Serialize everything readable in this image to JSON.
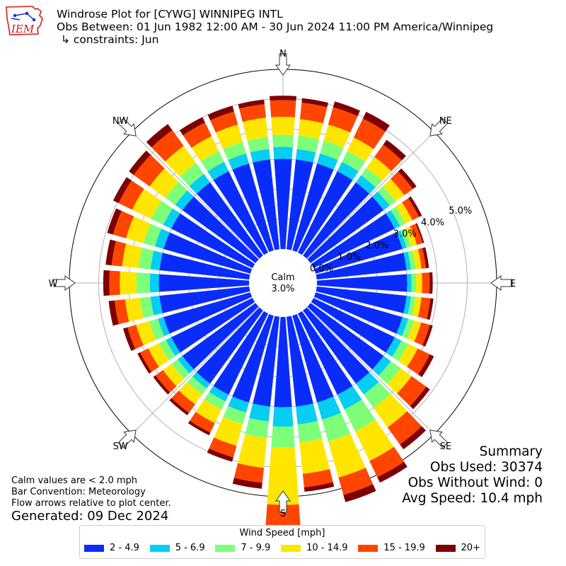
{
  "header": {
    "title": "Windrose Plot for [CYWG] WINNIPEG INTL",
    "obs_between": "Obs Between: 01 Jun 1982 12:00 AM - 30 Jun 2024 11:00 PM America/Winnipeg",
    "constraints": "↳ constraints: Jun"
  },
  "logo_text": "IEM",
  "notes": {
    "calm": "Calm values are < 2.0 mph",
    "convention": "Bar Convention: Meteorology",
    "flow": "Flow arrows relative to plot center.",
    "generated": "Generated: 09 Dec 2024"
  },
  "summary": {
    "title": "Summary",
    "obs_used": "Obs Used: 30374",
    "obs_without_wind": "Obs Without Wind: 0",
    "avg_speed": "Avg Speed: 10.4 mph"
  },
  "chart_data": {
    "type": "windrose",
    "calm_label": "Calm",
    "calm_value": "3.0%",
    "calm_percent": 3.0,
    "radial_ticks": [
      "0.0%",
      "1.0%",
      "2.0%",
      "3.0%",
      "4.0%",
      "5.0%"
    ],
    "cardinal_labels": [
      "N",
      "NE",
      "E",
      "SE",
      "S",
      "SW",
      "W",
      "NW"
    ],
    "legend_title": "Wind Speed [mph]",
    "bins": [
      "2 - 4.9",
      "5 - 6.9",
      "7 - 9.9",
      "10 - 14.9",
      "15 - 19.9",
      "20+"
    ],
    "colors": [
      "#0a2cfb",
      "#06cef3",
      "#7dff7a",
      "#ffe600",
      "#ff4500",
      "#7f0000"
    ],
    "directions_deg": [
      0,
      10,
      20,
      30,
      40,
      50,
      60,
      70,
      80,
      90,
      100,
      110,
      120,
      130,
      140,
      150,
      160,
      170,
      180,
      190,
      200,
      210,
      220,
      230,
      240,
      250,
      260,
      270,
      280,
      290,
      300,
      310,
      320,
      330,
      340,
      350
    ],
    "cumulative_percent": [
      [
        3.0,
        3.4,
        3.8,
        4.4,
        4.95,
        5.1
      ],
      [
        3.0,
        3.35,
        3.8,
        4.35,
        4.9,
        5.05
      ],
      [
        3.0,
        3.35,
        3.8,
        4.35,
        4.95,
        5.15
      ],
      [
        3.0,
        3.35,
        3.75,
        4.25,
        4.95,
        5.2
      ],
      [
        3.0,
        3.3,
        3.6,
        4.05,
        4.55,
        4.75
      ],
      [
        3.0,
        3.25,
        3.5,
        3.85,
        4.2,
        4.35
      ],
      [
        3.0,
        3.2,
        3.4,
        3.65,
        3.9,
        4.0
      ],
      [
        3.0,
        3.15,
        3.3,
        3.5,
        3.7,
        3.75
      ],
      [
        3.0,
        3.15,
        3.3,
        3.5,
        3.65,
        3.75
      ],
      [
        3.0,
        3.15,
        3.3,
        3.5,
        3.75,
        3.85
      ],
      [
        3.0,
        3.15,
        3.3,
        3.5,
        3.8,
        3.9
      ],
      [
        3.0,
        3.2,
        3.4,
        3.65,
        3.95,
        4.05
      ],
      [
        3.0,
        3.25,
        3.5,
        3.85,
        4.3,
        4.45
      ],
      [
        3.0,
        3.3,
        3.7,
        4.15,
        4.75,
        4.9
      ],
      [
        3.0,
        3.45,
        4.0,
        4.8,
        5.5,
        5.7
      ],
      [
        3.0,
        3.55,
        4.35,
        5.45,
        6.05,
        6.25
      ],
      [
        3.0,
        3.6,
        4.35,
        5.6,
        6.2,
        6.45
      ],
      [
        3.0,
        3.6,
        4.2,
        5.25,
        5.7,
        5.85
      ],
      [
        3.0,
        3.65,
        4.35,
        6.25,
        7.1,
        7.5
      ],
      [
        3.0,
        3.5,
        4.05,
        5.05,
        5.55,
        5.75
      ],
      [
        3.0,
        3.35,
        3.75,
        4.5,
        4.9,
        5.05
      ],
      [
        3.0,
        3.25,
        3.55,
        4.05,
        4.4,
        4.5
      ],
      [
        3.0,
        3.2,
        3.45,
        3.85,
        4.2,
        4.3
      ],
      [
        3.0,
        3.2,
        3.45,
        3.8,
        4.1,
        4.2
      ],
      [
        3.0,
        3.2,
        3.45,
        3.85,
        4.15,
        4.25
      ],
      [
        3.0,
        3.2,
        3.5,
        3.95,
        4.25,
        4.4
      ],
      [
        3.0,
        3.3,
        3.65,
        4.15,
        4.5,
        4.7
      ],
      [
        3.0,
        3.3,
        3.75,
        4.3,
        4.65,
        4.85
      ],
      [
        3.0,
        3.3,
        3.7,
        4.25,
        4.6,
        4.8
      ],
      [
        3.0,
        3.3,
        3.7,
        4.3,
        4.75,
        4.95
      ],
      [
        3.0,
        3.3,
        3.75,
        4.45,
        4.95,
        5.15
      ],
      [
        3.0,
        3.3,
        3.7,
        4.35,
        5.0,
        5.2
      ],
      [
        3.0,
        3.35,
        3.8,
        4.5,
        5.15,
        5.4
      ],
      [
        3.0,
        3.35,
        3.75,
        4.3,
        4.8,
        5.0
      ],
      [
        3.0,
        3.35,
        3.75,
        4.35,
        4.8,
        5.0
      ],
      [
        3.0,
        3.35,
        3.75,
        4.4,
        4.85,
        5.0
      ]
    ]
  }
}
